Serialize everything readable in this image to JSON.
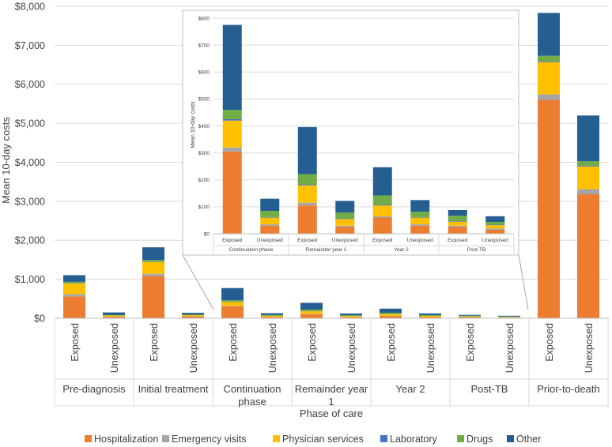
{
  "chart_data": [
    {
      "type": "bar",
      "stacked": true,
      "title": "",
      "xlabel": "Phase of care",
      "ylabel": "Mean 10-day costs",
      "ylim": [
        0,
        8000
      ],
      "yticks": [
        "$0",
        "$1,000",
        "$2,000",
        "$3,000",
        "$4,000",
        "$5,000",
        "$6,000",
        "$7,000",
        "$8,000"
      ],
      "groups": [
        {
          "name": "Pre-diagnosis",
          "categories": [
            "Exposed",
            "Unexposed"
          ]
        },
        {
          "name": "Initial treatment",
          "categories": [
            "Exposed",
            "Unexposed"
          ]
        },
        {
          "name": "Continuation phase",
          "categories": [
            "Exposed",
            "Unexposed"
          ]
        },
        {
          "name": "Remainder year 1",
          "categories": [
            "Exposed",
            "Unexposed"
          ]
        },
        {
          "name": "Year 2",
          "categories": [
            "Exposed",
            "Unexposed"
          ]
        },
        {
          "name": "Post-TB",
          "categories": [
            "Exposed",
            "Unexposed"
          ]
        },
        {
          "name": "Prior-to-death",
          "categories": [
            "Exposed",
            "Unexposed"
          ]
        }
      ],
      "series": [
        {
          "name": "Hospitalization",
          "color": "#ED7D31",
          "values": [
            560,
            30,
            1080,
            40,
            305,
            30,
            105,
            25,
            60,
            30,
            25,
            15,
            5600,
            3180
          ]
        },
        {
          "name": "Emergency visits",
          "color": "#A5A5A5",
          "values": [
            60,
            10,
            60,
            10,
            15,
            5,
            10,
            5,
            5,
            5,
            5,
            5,
            140,
            130
          ]
        },
        {
          "name": "Physician services",
          "color": "#FFC000",
          "values": [
            270,
            30,
            300,
            30,
            100,
            25,
            65,
            25,
            40,
            25,
            15,
            12,
            830,
            580
          ]
        },
        {
          "name": "Laboratory",
          "color": "#4472C4",
          "values": [
            5,
            2,
            5,
            2,
            5,
            2,
            3,
            2,
            2,
            2,
            2,
            2,
            20,
            15
          ]
        },
        {
          "name": "Drugs",
          "color": "#70AD47",
          "values": [
            40,
            10,
            50,
            10,
            35,
            23,
            38,
            22,
            35,
            20,
            20,
            10,
            140,
            120
          ]
        },
        {
          "name": "Other",
          "color": "#255E91",
          "values": [
            170,
            68,
            325,
            48,
            315,
            45,
            175,
            43,
            105,
            43,
            21,
            21,
            1100,
            1175
          ]
        }
      ],
      "legend_position": "bottom"
    },
    {
      "type": "bar",
      "stacked": true,
      "title": "",
      "ylabel": "Mean 10-day costs",
      "ylim": [
        0,
        800
      ],
      "yticks": [
        "$0",
        "$100",
        "$200",
        "$300",
        "$400",
        "$500",
        "$600",
        "$700",
        "$800"
      ],
      "groups": [
        {
          "name": "Continuation phase",
          "categories": [
            "Exposed",
            "Unexposed"
          ]
        },
        {
          "name": "Remainder year 1",
          "categories": [
            "Exposed",
            "Unexposed"
          ]
        },
        {
          "name": "Year 2",
          "categories": [
            "Exposed",
            "Unexposed"
          ]
        },
        {
          "name": "Post-TB",
          "categories": [
            "Exposed",
            "Unexposed"
          ]
        }
      ],
      "series": [
        {
          "name": "Hospitalization",
          "values": [
            305,
            30,
            105,
            25,
            60,
            30,
            25,
            15
          ]
        },
        {
          "name": "Emergency visits",
          "values": [
            15,
            5,
            10,
            5,
            5,
            5,
            5,
            5
          ]
        },
        {
          "name": "Physician services",
          "values": [
            100,
            25,
            65,
            25,
            40,
            25,
            15,
            12
          ]
        },
        {
          "name": "Laboratory",
          "values": [
            5,
            2,
            3,
            2,
            2,
            2,
            2,
            2
          ]
        },
        {
          "name": "Drugs",
          "values": [
            35,
            23,
            38,
            22,
            35,
            20,
            20,
            10
          ]
        },
        {
          "name": "Other",
          "values": [
            315,
            45,
            175,
            43,
            105,
            43,
            21,
            21
          ]
        }
      ]
    }
  ]
}
